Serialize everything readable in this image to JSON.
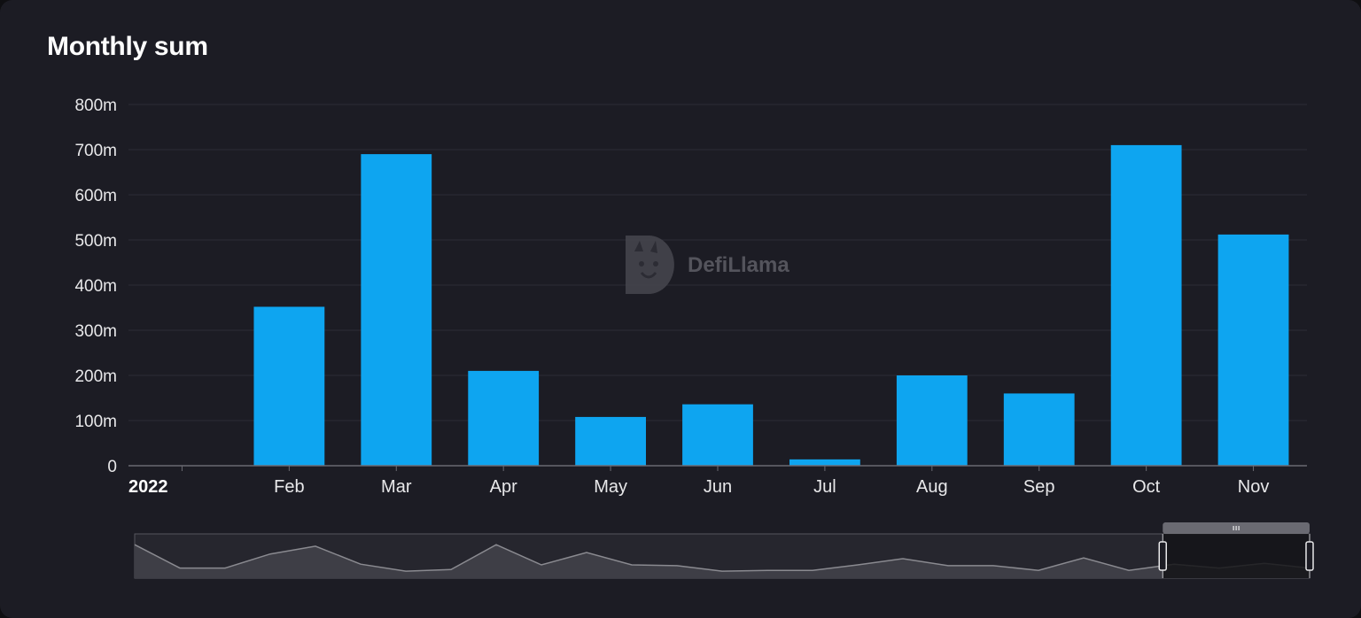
{
  "title": "Monthly sum",
  "watermark": {
    "text": "DefiLlama",
    "icon": "llama-logo-icon"
  },
  "colors": {
    "bar": "#0ea5f0",
    "background": "#1c1c24",
    "grid": "#2c2c36",
    "slider_line": "#8a8a90"
  },
  "chart_data": {
    "type": "bar",
    "title": "Monthly sum",
    "categories": [
      "2022",
      "Feb",
      "Mar",
      "Apr",
      "May",
      "Jun",
      "Jul",
      "Aug",
      "Sep",
      "Oct",
      "Nov"
    ],
    "values": [
      0,
      352000000,
      690000000,
      210000000,
      108000000,
      136000000,
      14000000,
      200000000,
      160000000,
      710000000,
      512000000
    ],
    "ylim": [
      0,
      800000000
    ],
    "yticks": [
      0,
      100000000,
      200000000,
      300000000,
      400000000,
      500000000,
      600000000,
      700000000,
      800000000
    ],
    "ytick_labels": [
      "0",
      "100m",
      "200m",
      "300m",
      "400m",
      "500m",
      "600m",
      "700m",
      "800m"
    ],
    "xtick_labels": [
      "2022",
      "Feb",
      "Mar",
      "Apr",
      "May",
      "Jun",
      "Jul",
      "Aug",
      "Sep",
      "Oct",
      "Nov"
    ],
    "grid": true,
    "legend": "none",
    "zoom_slider": {
      "overview_values": [
        0.86,
        0.26,
        0.26,
        0.62,
        0.82,
        0.36,
        0.18,
        0.22,
        0.86,
        0.34,
        0.66,
        0.34,
        0.32,
        0.18,
        0.2,
        0.2,
        0.34,
        0.5,
        0.32,
        0.32,
        0.2,
        0.52,
        0.2,
        0.36,
        0.26,
        0.38,
        0.26
      ],
      "selected_range": [
        0.875,
        1.0
      ]
    }
  }
}
